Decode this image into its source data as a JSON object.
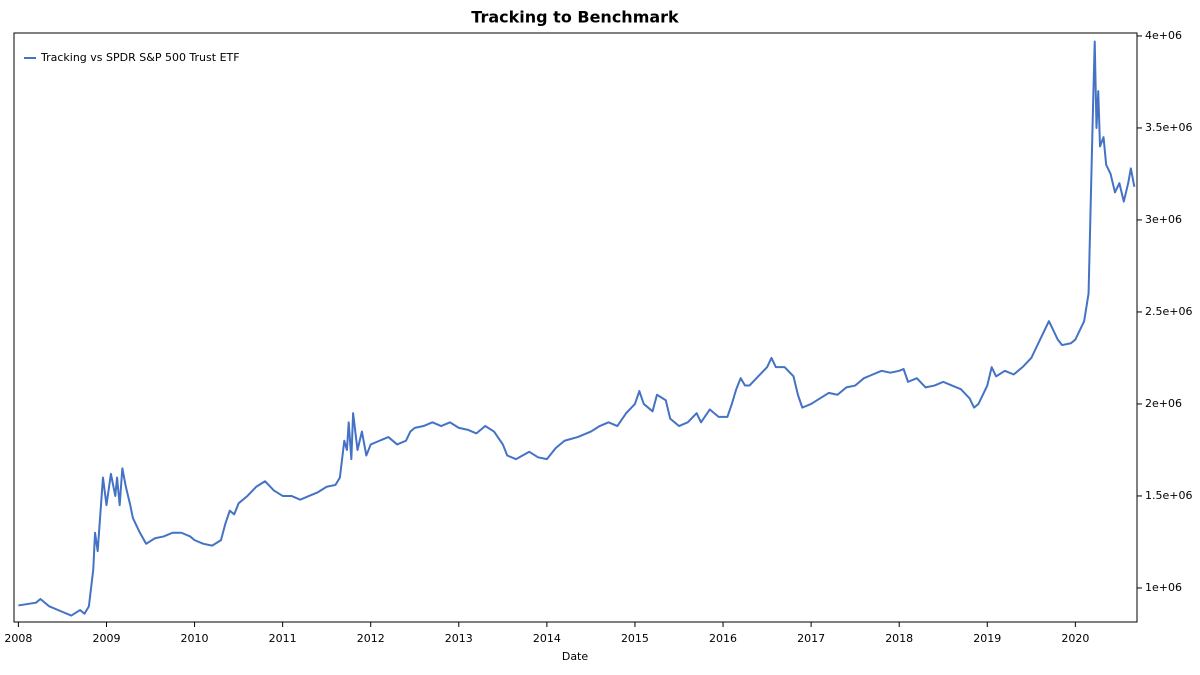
{
  "chart_data": {
    "type": "line",
    "title": "Tracking to Benchmark",
    "x_label": "Date",
    "x": [
      2008.0,
      2008.2,
      2008.25,
      2008.35,
      2008.5,
      2008.6,
      2008.7,
      2008.75,
      2008.8,
      2008.85,
      2008.87,
      2008.9,
      2008.93,
      2008.96,
      2009.0,
      2009.05,
      2009.1,
      2009.12,
      2009.15,
      2009.18,
      2009.22,
      2009.27,
      2009.3,
      2009.38,
      2009.45,
      2009.55,
      2009.65,
      2009.75,
      2009.85,
      2009.95,
      2010.0,
      2010.1,
      2010.2,
      2010.3,
      2010.35,
      2010.4,
      2010.45,
      2010.5,
      2010.6,
      2010.7,
      2010.8,
      2010.9,
      2011.0,
      2011.1,
      2011.2,
      2011.3,
      2011.4,
      2011.5,
      2011.6,
      2011.65,
      2011.7,
      2011.73,
      2011.75,
      2011.78,
      2011.8,
      2011.85,
      2011.9,
      2011.95,
      2012.0,
      2012.1,
      2012.2,
      2012.3,
      2012.4,
      2012.45,
      2012.5,
      2012.6,
      2012.7,
      2012.8,
      2012.9,
      2013.0,
      2013.1,
      2013.2,
      2013.3,
      2013.4,
      2013.5,
      2013.55,
      2013.65,
      2013.8,
      2013.9,
      2014.0,
      2014.1,
      2014.2,
      2014.35,
      2014.5,
      2014.6,
      2014.7,
      2014.8,
      2014.9,
      2015.0,
      2015.05,
      2015.1,
      2015.2,
      2015.25,
      2015.35,
      2015.4,
      2015.5,
      2015.6,
      2015.7,
      2015.75,
      2015.85,
      2015.95,
      2016.05,
      2016.1,
      2016.15,
      2016.2,
      2016.25,
      2016.3,
      2016.4,
      2016.5,
      2016.55,
      2016.6,
      2016.7,
      2016.8,
      2016.85,
      2016.9,
      2017.0,
      2017.1,
      2017.2,
      2017.3,
      2017.4,
      2017.5,
      2017.6,
      2017.7,
      2017.8,
      2017.9,
      2018.0,
      2018.05,
      2018.1,
      2018.2,
      2018.3,
      2018.4,
      2018.5,
      2018.6,
      2018.7,
      2018.8,
      2018.85,
      2018.9,
      2019.0,
      2019.05,
      2019.1,
      2019.2,
      2019.3,
      2019.4,
      2019.5,
      2019.55,
      2019.65,
      2019.7,
      2019.75,
      2019.8,
      2019.85,
      2019.95,
      2020.0,
      2020.1,
      2020.15,
      2020.17,
      2020.2,
      2020.22,
      2020.24,
      2020.26,
      2020.28,
      2020.32,
      2020.35,
      2020.4,
      2020.45,
      2020.5,
      2020.55,
      2020.6,
      2020.63,
      2020.67
    ],
    "series": [
      {
        "name": "Tracking vs SPDR S&P 500 Trust ETF",
        "color": "#4472c4",
        "values": [
          905000,
          920000,
          940000,
          900000,
          870000,
          850000,
          880000,
          860000,
          900000,
          1100000,
          1300000,
          1200000,
          1400000,
          1600000,
          1450000,
          1620000,
          1500000,
          1600000,
          1450000,
          1650000,
          1550000,
          1450000,
          1380000,
          1300000,
          1240000,
          1270000,
          1280000,
          1300000,
          1300000,
          1280000,
          1260000,
          1240000,
          1230000,
          1260000,
          1350000,
          1420000,
          1400000,
          1460000,
          1500000,
          1550000,
          1580000,
          1530000,
          1500000,
          1500000,
          1480000,
          1500000,
          1520000,
          1550000,
          1560000,
          1600000,
          1800000,
          1750000,
          1900000,
          1700000,
          1950000,
          1750000,
          1850000,
          1720000,
          1780000,
          1800000,
          1820000,
          1780000,
          1800000,
          1850000,
          1870000,
          1880000,
          1900000,
          1880000,
          1900000,
          1870000,
          1860000,
          1840000,
          1880000,
          1850000,
          1780000,
          1720000,
          1700000,
          1740000,
          1710000,
          1700000,
          1760000,
          1800000,
          1820000,
          1850000,
          1880000,
          1900000,
          1880000,
          1950000,
          2000000,
          2070000,
          2000000,
          1960000,
          2050000,
          2020000,
          1920000,
          1880000,
          1900000,
          1950000,
          1900000,
          1970000,
          1930000,
          1930000,
          2000000,
          2080000,
          2140000,
          2100000,
          2100000,
          2150000,
          2200000,
          2250000,
          2200000,
          2200000,
          2150000,
          2050000,
          1980000,
          2000000,
          2030000,
          2060000,
          2050000,
          2090000,
          2100000,
          2140000,
          2160000,
          2180000,
          2170000,
          2180000,
          2190000,
          2120000,
          2140000,
          2090000,
          2100000,
          2120000,
          2100000,
          2080000,
          2030000,
          1980000,
          2000000,
          2100000,
          2200000,
          2150000,
          2180000,
          2160000,
          2200000,
          2250000,
          2300000,
          2400000,
          2450000,
          2400000,
          2350000,
          2320000,
          2330000,
          2350000,
          2450000,
          2600000,
          3000000,
          3600000,
          3970000,
          3500000,
          3700000,
          3400000,
          3450000,
          3300000,
          3250000,
          3150000,
          3200000,
          3100000,
          3200000,
          3280000,
          3180000
        ]
      }
    ],
    "xlim": [
      2007.95,
      2020.7
    ],
    "xticks": [
      2008,
      2009,
      2010,
      2011,
      2012,
      2013,
      2014,
      2015,
      2016,
      2017,
      2018,
      2019,
      2020
    ],
    "ylim": [
      815000,
      4016000
    ],
    "yticks": [
      {
        "value": 1000000,
        "label": "1e+06"
      },
      {
        "value": 1500000,
        "label": "1.5e+06"
      },
      {
        "value": 2000000,
        "label": "2e+06"
      },
      {
        "value": 2500000,
        "label": "2.5e+06"
      },
      {
        "value": 3000000,
        "label": "3e+06"
      },
      {
        "value": 3500000,
        "label": "3.5e+06"
      },
      {
        "value": 4000000,
        "label": "4e+06"
      }
    ],
    "y_axis_side": "right",
    "legend": "upper-left",
    "grid": false
  }
}
